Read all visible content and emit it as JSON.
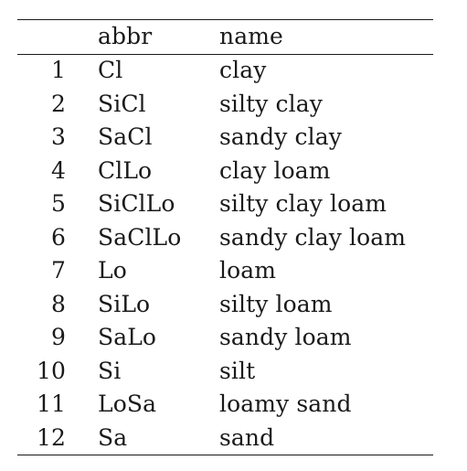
{
  "table": {
    "headers": {
      "index": "",
      "abbr": "abbr",
      "name": "name"
    },
    "rows": [
      {
        "index": "1",
        "abbr": "Cl",
        "name": "clay"
      },
      {
        "index": "2",
        "abbr": "SiCl",
        "name": "silty clay"
      },
      {
        "index": "3",
        "abbr": "SaCl",
        "name": "sandy clay"
      },
      {
        "index": "4",
        "abbr": "ClLo",
        "name": "clay loam"
      },
      {
        "index": "5",
        "abbr": "SiClLo",
        "name": "silty clay loam"
      },
      {
        "index": "6",
        "abbr": "SaClLo",
        "name": "sandy clay loam"
      },
      {
        "index": "7",
        "abbr": "Lo",
        "name": "loam"
      },
      {
        "index": "8",
        "abbr": "SiLo",
        "name": "silty loam"
      },
      {
        "index": "9",
        "abbr": "SaLo",
        "name": "sandy loam"
      },
      {
        "index": "10",
        "abbr": "Si",
        "name": "silt"
      },
      {
        "index": "11",
        "abbr": "LoSa",
        "name": "loamy sand"
      },
      {
        "index": "12",
        "abbr": "Sa",
        "name": "sand"
      }
    ]
  }
}
